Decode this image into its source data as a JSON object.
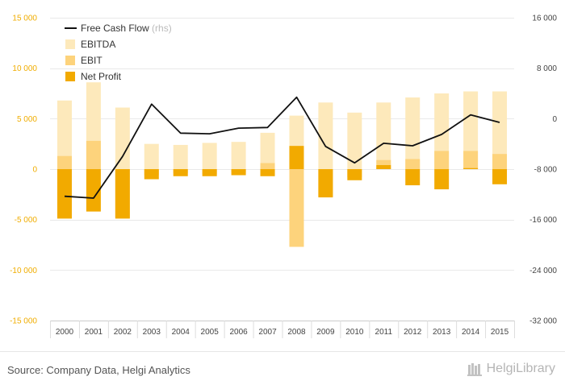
{
  "chart_data": {
    "type": "bar",
    "categories": [
      "2000",
      "2001",
      "2002",
      "2003",
      "2004",
      "2005",
      "2006",
      "2007",
      "2008",
      "2009",
      "2010",
      "2011",
      "2012",
      "2013",
      "2014",
      "2015"
    ],
    "series": [
      {
        "name": "EBITDA",
        "kind": "bar",
        "axis": "left",
        "color": "#fde9bb",
        "values": [
          6800,
          8600,
          6100,
          2500,
          2400,
          2600,
          2700,
          3600,
          5300,
          6600,
          5600,
          6600,
          7100,
          7500,
          7700,
          7700
        ]
      },
      {
        "name": "EBIT",
        "kind": "bar",
        "axis": "left",
        "color": "#fdd37c",
        "values": [
          1300,
          2800,
          -4800,
          -600,
          -400,
          -500,
          -300,
          600,
          -7700,
          -2700,
          -800,
          900,
          1000,
          1800,
          1800,
          1500
        ]
      },
      {
        "name": "Net Profit",
        "kind": "bar",
        "axis": "left",
        "color": "#f2aa00",
        "values": [
          -4900,
          -4200,
          -4900,
          -1000,
          -700,
          -700,
          -600,
          -700,
          2300,
          -2800,
          -1100,
          400,
          -1600,
          -2000,
          100,
          -1500
        ]
      },
      {
        "name": "Free Cash Flow",
        "name_suffix": "(rhs)",
        "kind": "line",
        "axis": "right",
        "color": "#111111",
        "values": [
          -12300,
          -12600,
          -6000,
          2300,
          -2300,
          -2400,
          -1500,
          -1400,
          3400,
          -4400,
          -7000,
          -3900,
          -4300,
          -2500,
          600,
          -600
        ]
      }
    ],
    "left_axis": {
      "min": -15000,
      "max": 15000,
      "ticks": [
        15000,
        10000,
        5000,
        0,
        -5000,
        -10000,
        -15000
      ],
      "tick_labels": [
        "15 000",
        "10 000",
        "5 000",
        "0",
        "-5 000",
        "-10 000",
        "-15 000"
      ]
    },
    "right_axis": {
      "min": -32000,
      "max": 16000,
      "ticks": [
        16000,
        8000,
        0,
        -8000,
        -16000,
        -24000,
        -32000
      ],
      "tick_labels": [
        "16 000",
        "8 000",
        "0",
        "-8 000",
        "-16 000",
        "-24 000",
        "-32 000"
      ]
    },
    "grid": true,
    "legend_position": "top-left"
  },
  "footer": {
    "source": "Source: Company Data, Helgi Analytics",
    "logo_text": "HelgiLibrary",
    "logo_icon": "library-books-icon"
  }
}
